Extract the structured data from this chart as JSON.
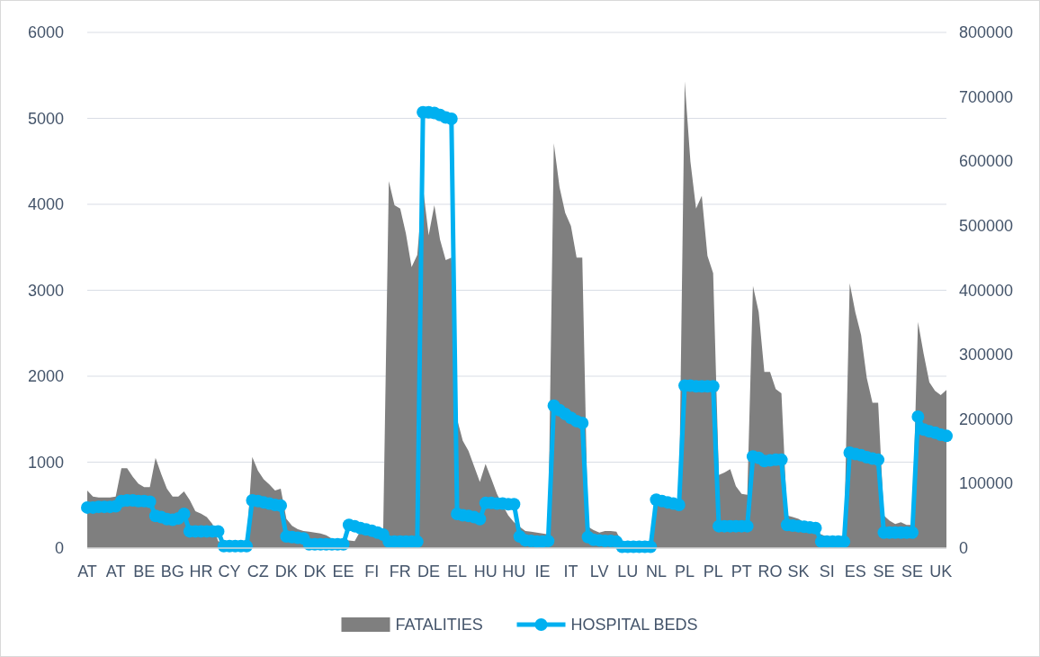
{
  "chart_data": {
    "type": "area",
    "categories": [
      "AT",
      null,
      null,
      null,
      null,
      "AT",
      null,
      null,
      null,
      null,
      "BE",
      null,
      null,
      null,
      null,
      "BG",
      null,
      null,
      null,
      null,
      "HR",
      null,
      null,
      null,
      null,
      "CY",
      null,
      null,
      null,
      null,
      "CZ",
      null,
      null,
      null,
      null,
      "DK",
      null,
      null,
      null,
      null,
      "DK",
      null,
      null,
      null,
      null,
      "EE",
      null,
      null,
      null,
      null,
      "FI",
      null,
      null,
      null,
      null,
      "FR",
      null,
      null,
      null,
      null,
      "DE",
      null,
      null,
      null,
      null,
      "EL",
      null,
      null,
      null,
      null,
      "HU",
      null,
      null,
      null,
      null,
      "HU",
      null,
      null,
      null,
      null,
      "IE",
      null,
      null,
      null,
      null,
      "IT",
      null,
      null,
      null,
      null,
      "LV",
      null,
      null,
      null,
      null,
      "LU",
      null,
      null,
      null,
      null,
      "NL",
      null,
      null,
      null,
      null,
      "PL",
      null,
      null,
      null,
      null,
      "PL",
      null,
      null,
      null,
      null,
      "PT",
      null,
      null,
      null,
      null,
      "RO",
      null,
      null,
      null,
      null,
      "SK",
      null,
      null,
      null,
      null,
      "SI",
      null,
      null,
      null,
      null,
      "ES",
      null,
      null,
      null,
      null,
      "SE",
      null,
      null,
      null,
      null,
      "SE",
      null,
      null,
      null,
      null,
      "UK",
      null
    ],
    "series": [
      {
        "name": "FATALITIES",
        "color": "#7f7f7f",
        "values": [
          670,
          600,
          590,
          590,
          590,
          600,
          930,
          930,
          830,
          750,
          710,
          710,
          1050,
          860,
          690,
          600,
          600,
          660,
          560,
          430,
          400,
          360,
          280,
          80,
          60,
          50,
          50,
          50,
          50,
          1060,
          900,
          800,
          740,
          670,
          690,
          340,
          260,
          220,
          200,
          190,
          180,
          170,
          150,
          110,
          100,
          90,
          90,
          80,
          200,
          190,
          180,
          170,
          160,
          4270,
          3990,
          3950,
          3660,
          3270,
          3410,
          4200,
          3640,
          3990,
          3590,
          3350,
          3380,
          1500,
          1250,
          1130,
          950,
          770,
          980,
          810,
          630,
          500,
          380,
          300,
          250,
          200,
          190,
          180,
          170,
          160,
          4710,
          4200,
          3900,
          3750,
          3380,
          3380,
          250,
          210,
          180,
          200,
          200,
          190,
          60,
          50,
          40,
          40,
          40,
          40,
          600,
          580,
          560,
          540,
          520,
          5430,
          4500,
          3950,
          4100,
          3400,
          3200,
          850,
          880,
          920,
          720,
          630,
          620,
          3050,
          2750,
          2050,
          2050,
          1850,
          1800,
          380,
          360,
          340,
          300,
          250,
          170,
          160,
          130,
          110,
          100,
          100,
          3080,
          2740,
          2480,
          1980,
          1690,
          1690,
          380,
          320,
          280,
          300,
          270,
          270,
          2630,
          2260,
          1930,
          1830,
          1780,
          1840
        ]
      },
      {
        "name": "HOSPITAL BEDS",
        "type": "line",
        "axis": "y2",
        "marker": "circle",
        "color": "#00b0f0",
        "values": [
          63000,
          63000,
          64000,
          64000,
          64000,
          65000,
          73000,
          74000,
          74000,
          73000,
          73000,
          72000,
          50000,
          48000,
          45000,
          44000,
          46000,
          53000,
          26000,
          26000,
          26000,
          26000,
          26000,
          26000,
          3000,
          3000,
          3000,
          3000,
          3000,
          74000,
          73000,
          71000,
          69000,
          67000,
          66000,
          18000,
          17000,
          16000,
          15000,
          6000,
          6000,
          6000,
          6000,
          6000,
          6000,
          6000,
          36000,
          34000,
          31000,
          29000,
          27000,
          24000,
          21000,
          10000,
          10000,
          10000,
          10000,
          10000,
          10000,
          676000,
          676000,
          675000,
          672000,
          668000,
          666000,
          53000,
          51000,
          50000,
          48000,
          45000,
          70000,
          70000,
          69000,
          69000,
          68000,
          68000,
          18000,
          12000,
          11000,
          10000,
          10000,
          11000,
          221000,
          214000,
          208000,
          202000,
          197000,
          194000,
          17000,
          13000,
          12000,
          11000,
          11000,
          10000,
          2000,
          2000,
          2000,
          2000,
          2000,
          2000,
          75000,
          73000,
          71000,
          69000,
          67000,
          252000,
          252000,
          251000,
          251000,
          251000,
          251000,
          34000,
          34000,
          34000,
          34000,
          34000,
          34000,
          142000,
          140000,
          135000,
          136000,
          137000,
          137000,
          36000,
          35000,
          34000,
          33000,
          32000,
          31000,
          10000,
          10000,
          10000,
          10000,
          10000,
          148000,
          146000,
          144000,
          141000,
          139000,
          137000,
          24000,
          24000,
          24000,
          24000,
          24000,
          24000,
          204000,
          184000,
          181000,
          179000,
          176000,
          174000
        ]
      }
    ],
    "ylim": [
      0,
      6000
    ],
    "yticks": [
      0,
      1000,
      2000,
      3000,
      4000,
      5000,
      6000
    ],
    "y2lim": [
      0,
      800000
    ],
    "y2ticks": [
      0,
      100000,
      200000,
      300000,
      400000,
      500000,
      600000,
      700000,
      800000
    ],
    "grid": "y",
    "legend": "bottom"
  }
}
